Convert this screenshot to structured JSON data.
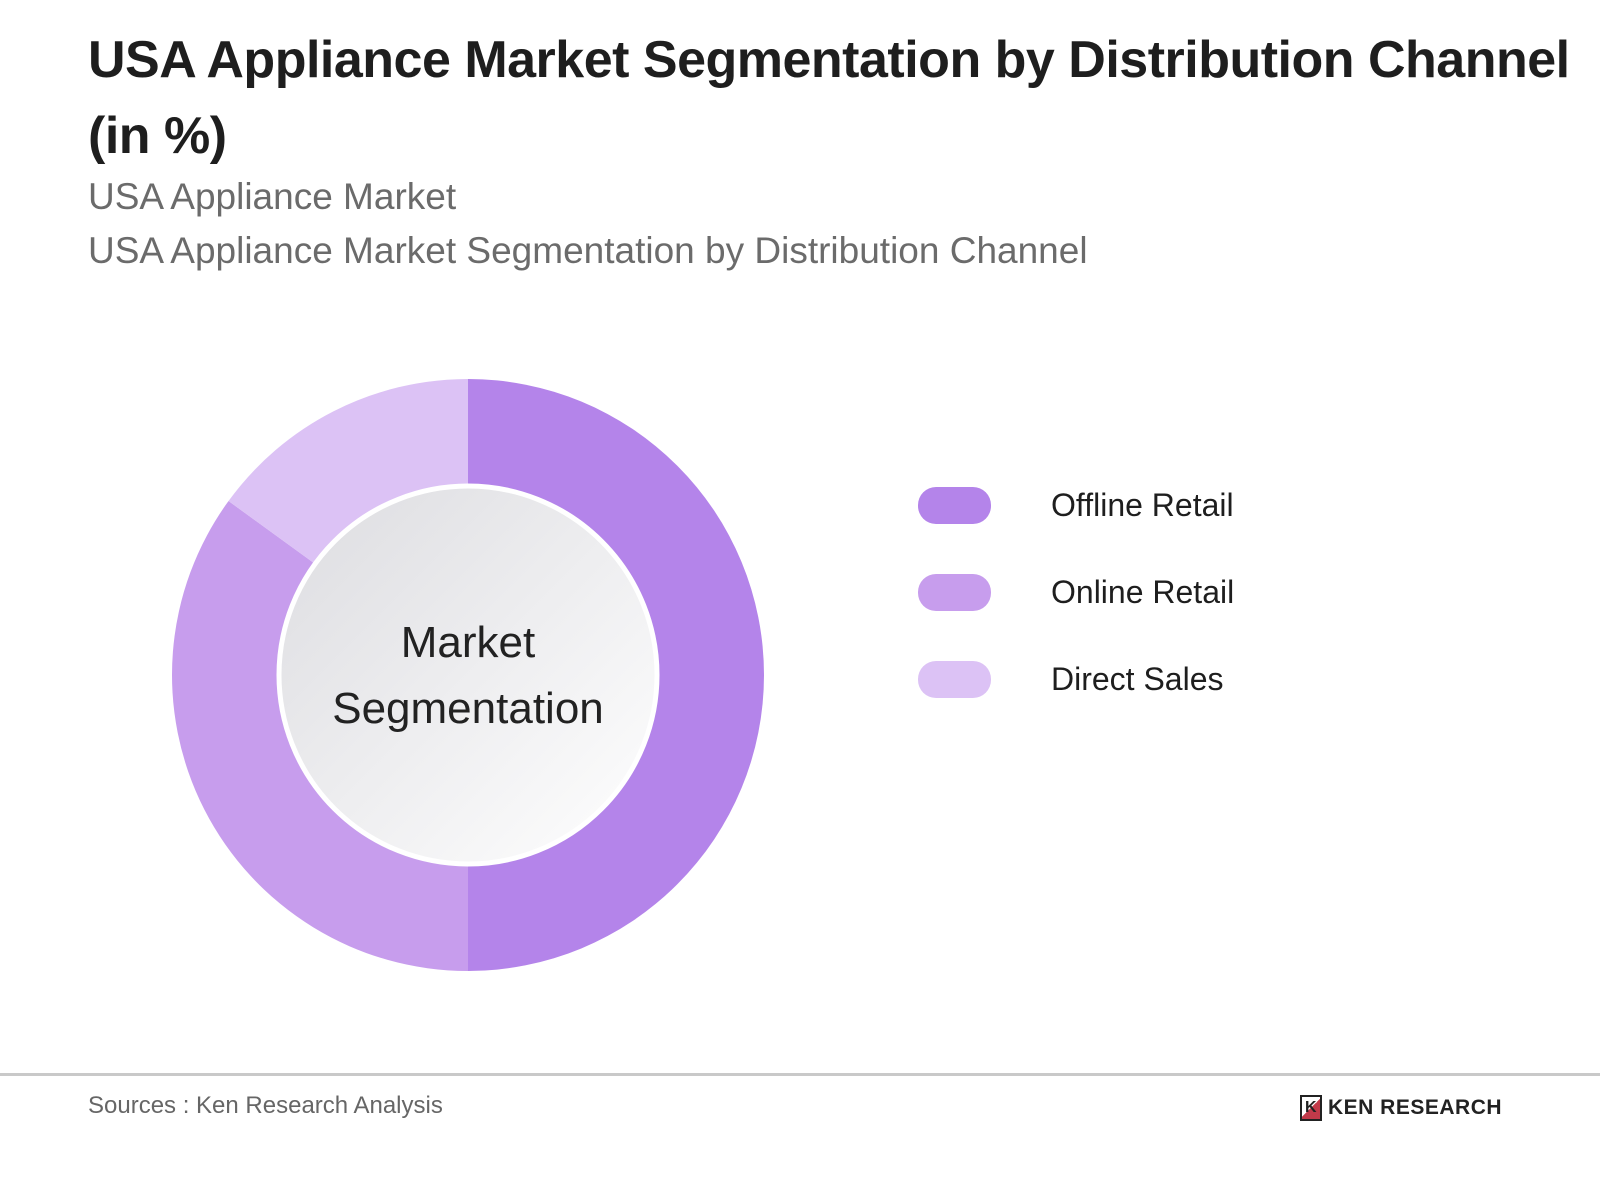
{
  "header": {
    "title": "USA Appliance Market Segmentation by Distribution Channel (in %)",
    "subtitle1": "USA Appliance Market",
    "subtitle2": "USA Appliance Market Segmentation by Distribution Channel"
  },
  "chart_data": {
    "type": "pie",
    "variant": "donut",
    "center_label": "Market Segmentation",
    "categories": [
      "Offline Retail",
      "Online Retail",
      "Direct Sales"
    ],
    "values": [
      50,
      35,
      15
    ],
    "colors": [
      "#b484ea",
      "#c79ded",
      "#dcc2f5"
    ],
    "legend_position": "right"
  },
  "footer": {
    "source": "Sources : Ken Research Analysis",
    "logo_text": "KEN RESEARCH"
  }
}
